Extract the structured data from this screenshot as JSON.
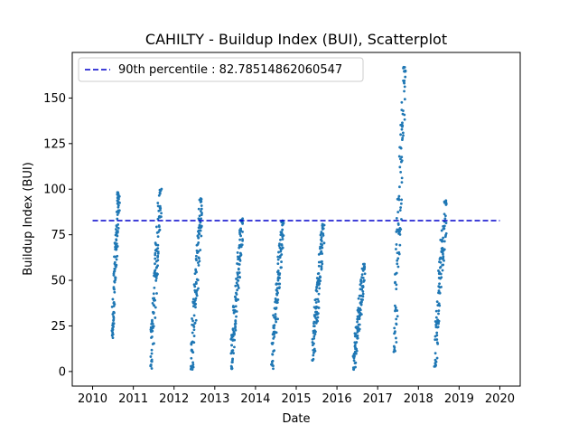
{
  "chart_data": {
    "type": "scatter",
    "title": "CAHILTY - Buildup Index (BUI), Scatterplot",
    "xlabel": "Date",
    "ylabel": "Buildup Index (BUI)",
    "xlim": [
      "2010",
      "2020"
    ],
    "ylim": [
      -8,
      175
    ],
    "x_ticks": [
      "2010",
      "2011",
      "2012",
      "2013",
      "2014",
      "2015",
      "2016",
      "2017",
      "2018",
      "2019",
      "2020"
    ],
    "y_ticks": [
      0,
      25,
      50,
      75,
      100,
      125,
      150
    ],
    "grid": false,
    "legend_position": "upper-left",
    "reference_line": {
      "label": "90th percentile : 82.78514862060547",
      "value": 82.78514862060547,
      "style": "dashed",
      "color": "#0000cc"
    },
    "point_color": "#1f77b4",
    "series": [
      {
        "season_clusters": [
          {
            "year": "2010",
            "x_start": 2010.48,
            "x_end": 2010.65,
            "y_min": 18,
            "y_max": 99
          },
          {
            "year": "2011",
            "x_start": 2011.42,
            "x_end": 2011.68,
            "y_min": 1,
            "y_max": 101
          },
          {
            "year": "2012",
            "x_start": 2012.42,
            "x_end": 2012.68,
            "y_min": 0,
            "y_max": 96
          },
          {
            "year": "2013",
            "x_start": 2013.4,
            "x_end": 2013.68,
            "y_min": 0,
            "y_max": 84
          },
          {
            "year": "2014",
            "x_start": 2014.4,
            "x_end": 2014.68,
            "y_min": 1,
            "y_max": 83
          },
          {
            "year": "2015",
            "x_start": 2015.4,
            "x_end": 2015.68,
            "y_min": 6,
            "y_max": 81
          },
          {
            "year": "2016",
            "x_start": 2016.4,
            "x_end": 2016.68,
            "y_min": 0,
            "y_max": 59
          },
          {
            "year": "2017",
            "x_start": 2017.4,
            "x_end": 2017.68,
            "y_min": 10,
            "y_max": 167
          },
          {
            "year": "2018",
            "x_start": 2018.4,
            "x_end": 2018.68,
            "y_min": 2,
            "y_max": 94
          }
        ]
      }
    ]
  }
}
